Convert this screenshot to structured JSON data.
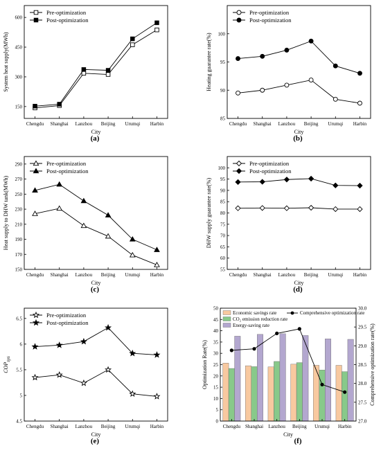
{
  "chart_data": [
    {
      "id": "a",
      "panel_label": "(a)",
      "type": "line",
      "categories": [
        "Chengdu",
        "Shanghai",
        "Lanzhou",
        "Beijing",
        "Urumqi",
        "Harbin"
      ],
      "xlabel": "City",
      "ylabel": "System heat supply(MWh)",
      "ylim": [
        90,
        660
      ],
      "yticks": [
        150,
        300,
        450,
        600
      ],
      "legend_position": "top-left",
      "series": [
        {
          "name": "Pre-optimization",
          "marker": "square-open",
          "values": [
            143,
            155,
            318,
            312,
            462,
            537
          ]
        },
        {
          "name": "Post-optimization",
          "marker": "square-filled",
          "values": [
            152,
            162,
            337,
            333,
            492,
            573
          ]
        }
      ]
    },
    {
      "id": "b",
      "panel_label": "(b)",
      "type": "line",
      "categories": [
        "Chengdu",
        "Shanghai",
        "Lanzhou",
        "Beijing",
        "Urumqi",
        "Harbin"
      ],
      "xlabel": "City",
      "ylabel": "Heating guarantee rate(%)",
      "ylim": [
        85,
        105
      ],
      "yticks": [
        85,
        90,
        95,
        100
      ],
      "legend_position": "top-left",
      "series": [
        {
          "name": "Pre-optimization",
          "marker": "circle-open",
          "values": [
            89.5,
            90.0,
            90.9,
            91.8,
            88.4,
            87.7
          ]
        },
        {
          "name": "Post-optimization",
          "marker": "circle-filled",
          "values": [
            95.6,
            96.0,
            97.1,
            98.7,
            94.3,
            93.0
          ]
        }
      ]
    },
    {
      "id": "c",
      "panel_label": "(c)",
      "type": "line",
      "categories": [
        "Chengdu",
        "Shanghai",
        "Lanzhou",
        "Beijing",
        "Urumqi",
        "Harbin"
      ],
      "xlabel": "City",
      "ylabel": "Heat supply to DHW tank(MWh)",
      "ylim": [
        150,
        300
      ],
      "yticks": [
        150,
        170,
        190,
        210,
        230,
        250,
        270,
        290
      ],
      "legend_position": "top-left",
      "series": [
        {
          "name": "Pre-optimization",
          "marker": "triangle-open",
          "values": [
            224,
            231,
            208,
            194,
            169,
            156
          ]
        },
        {
          "name": "Post-optimization",
          "marker": "triangle-filled",
          "values": [
            255,
            263,
            241,
            222,
            190,
            176
          ]
        }
      ]
    },
    {
      "id": "d",
      "panel_label": "(d)",
      "type": "line",
      "categories": [
        "Chengdu",
        "Shanghai",
        "Lanzhou",
        "Beijing",
        "Urumqi",
        "Harbin"
      ],
      "xlabel": "City",
      "ylabel": "DHW supply guarantee rate(%)",
      "ylim": [
        55,
        105
      ],
      "yticks": [
        55,
        60,
        65,
        70,
        75,
        80,
        85,
        90,
        95,
        100
      ],
      "legend_position": "top-left",
      "series": [
        {
          "name": "Pre-optimization",
          "marker": "diamond-open",
          "values": [
            82.1,
            82.2,
            82.1,
            82.3,
            81.7,
            81.7
          ]
        },
        {
          "name": "Post-optimization",
          "marker": "diamond-filled",
          "values": [
            93.7,
            93.8,
            94.8,
            95.2,
            92.2,
            92.1
          ]
        }
      ]
    },
    {
      "id": "e",
      "panel_label": "(e)",
      "type": "line",
      "categories": [
        "Chengdu",
        "Shanghai",
        "Lanzhou",
        "Beijing",
        "Urumqi",
        "Harbin"
      ],
      "xlabel": "City",
      "ylabel": "COP",
      "ylabel_subscript": "sys",
      "ylim": [
        4.5,
        6.7
      ],
      "yticks": [
        4.5,
        5.0,
        5.5,
        6.0,
        6.5
      ],
      "legend_position": "top-left",
      "series": [
        {
          "name": "Pre-optimization",
          "marker": "star-open",
          "values": [
            5.35,
            5.4,
            5.24,
            5.5,
            5.03,
            4.98
          ]
        },
        {
          "name": "Post-optimization",
          "marker": "star-filled",
          "values": [
            5.95,
            5.98,
            6.05,
            6.32,
            5.82,
            5.79
          ]
        }
      ]
    },
    {
      "id": "f",
      "panel_label": "(f)",
      "type": "bar",
      "categories": [
        "Chengdu",
        "Shanghai",
        "Lanzhou",
        "Beijing",
        "Urumqi",
        "Harbin"
      ],
      "xlabel": "City",
      "ylabel": "Optimization Rate(%)",
      "ylim": [
        0,
        50
      ],
      "yticks": [
        0,
        5,
        10,
        15,
        20,
        25,
        30,
        35,
        40,
        45,
        50
      ],
      "ylabel_right": "Comprehensive optimization rate(%)",
      "ylim_right": [
        27.0,
        30.0
      ],
      "yticks_right": [
        "27.0",
        "27.5",
        "28.0",
        "28.5",
        "29.0",
        "29.5",
        "30.0"
      ],
      "legend_position": "top",
      "bar_series": [
        {
          "name": "Economic savings rate",
          "color": "#F8C9A0",
          "values": [
            25.7,
            24.5,
            24.0,
            25.2,
            24.7,
            24.7
          ]
        },
        {
          "name": "CO₂ emission reduction rate",
          "color": "#88C98A",
          "values": [
            23.3,
            24.1,
            26.4,
            25.9,
            22.6,
            21.9
          ]
        },
        {
          "name": "Energy-saving rate",
          "color": "#B3A7CF",
          "values": [
            37.6,
            38.4,
            38.7,
            37.9,
            36.4,
            36.2
          ]
        }
      ],
      "line_series": [
        {
          "name": "Comprehensive optimization rate",
          "axis": "right",
          "values": [
            28.88,
            28.92,
            29.33,
            29.45,
            27.97,
            27.77
          ]
        }
      ]
    }
  ]
}
